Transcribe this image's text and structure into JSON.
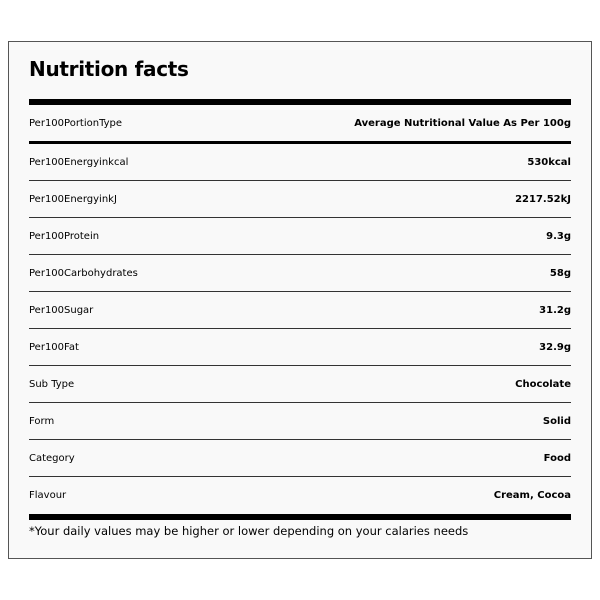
{
  "title": "Nutrition facts",
  "rows": [
    {
      "label": "Per100PortionType",
      "value": "Average Nutritional Value As Per 100g"
    },
    {
      "label": "Per100Energyinkcal",
      "value": "530kcal"
    },
    {
      "label": "Per100EnergyinkJ",
      "value": "2217.52kJ"
    },
    {
      "label": "Per100Protein",
      "value": "9.3g"
    },
    {
      "label": "Per100Carbohydrates",
      "value": "58g"
    },
    {
      "label": "Per100Sugar",
      "value": "31.2g"
    },
    {
      "label": "Per100Fat",
      "value": "32.9g"
    },
    {
      "label": "Sub Type",
      "value": "Chocolate"
    },
    {
      "label": "Form",
      "value": "Solid"
    },
    {
      "label": "Category",
      "value": "Food"
    },
    {
      "label": "Flavour",
      "value": "Cream, Cocoa"
    }
  ],
  "footnote": "*Your daily values may be higher or lower depending on your calaries needs"
}
